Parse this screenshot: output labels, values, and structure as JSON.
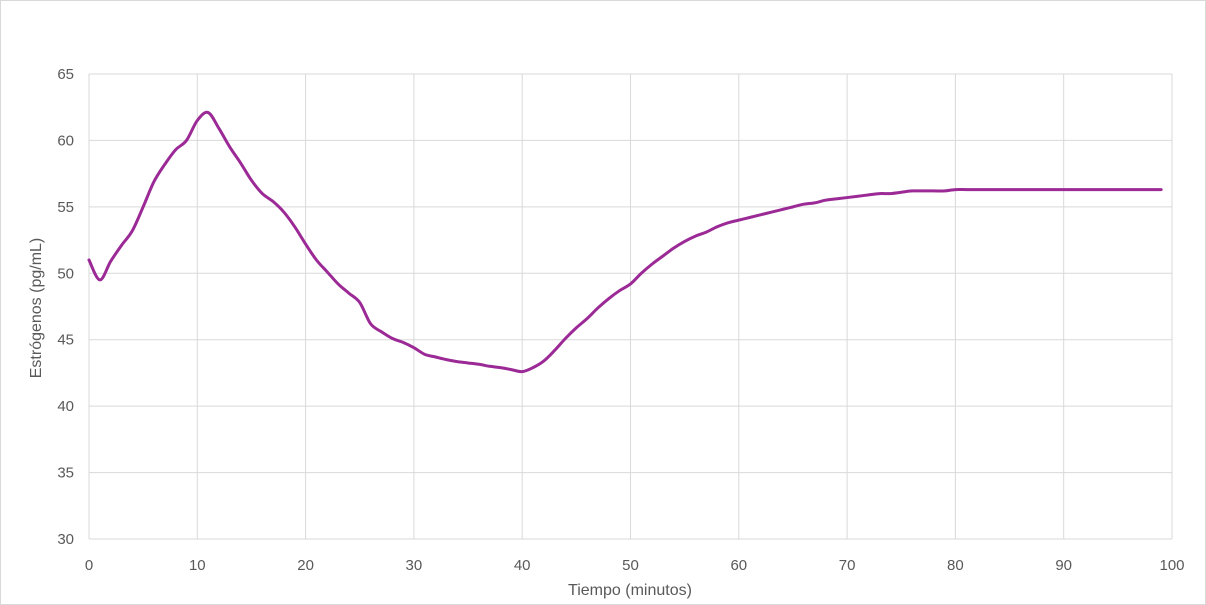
{
  "chart_data": {
    "type": "line",
    "title": "",
    "xlabel": "Tiempo (minutos)",
    "ylabel": "Estrógenos (pg/mL)",
    "xlim": [
      0,
      100
    ],
    "ylim": [
      30,
      65
    ],
    "xticks": [
      0,
      10,
      20,
      30,
      40,
      50,
      60,
      70,
      80,
      90,
      100
    ],
    "yticks": [
      30,
      35,
      40,
      45,
      50,
      55,
      60,
      65
    ],
    "grid": true,
    "legend": "none",
    "colors": {
      "line": "#9b2a96",
      "grid": "#d9d9d9",
      "text": "#595959"
    },
    "series": [
      {
        "x": [
          0,
          1,
          2,
          3,
          4,
          5,
          6,
          7,
          8,
          9,
          10,
          11,
          12,
          13,
          14,
          15,
          16,
          17,
          18,
          19,
          20,
          21,
          22,
          23,
          24,
          25,
          26,
          27,
          28,
          29,
          30,
          31,
          32,
          33,
          34,
          35,
          36,
          37,
          38,
          39,
          40,
          41,
          42,
          43,
          44,
          45,
          46,
          47,
          48,
          49,
          50,
          51,
          52,
          53,
          54,
          55,
          56,
          57,
          58,
          59,
          60,
          61,
          62,
          63,
          64,
          65,
          66,
          67,
          68,
          69,
          70,
          71,
          72,
          73,
          74,
          75,
          76,
          77,
          78,
          79,
          80,
          81,
          82,
          83,
          84,
          85,
          86,
          87,
          88,
          89,
          90,
          91,
          92,
          93,
          94,
          95,
          96,
          97,
          98,
          99
        ],
        "values": [
          51.0,
          49.5,
          50.9,
          52.1,
          53.2,
          55.0,
          56.9,
          58.2,
          59.3,
          60.0,
          61.5,
          62.1,
          60.9,
          59.5,
          58.3,
          57.0,
          56.0,
          55.4,
          54.6,
          53.5,
          52.2,
          51.0,
          50.1,
          49.2,
          48.5,
          47.8,
          46.2,
          45.6,
          45.1,
          44.8,
          44.4,
          43.9,
          43.7,
          43.5,
          43.35,
          43.25,
          43.15,
          43.0,
          42.9,
          42.75,
          42.6,
          42.9,
          43.4,
          44.2,
          45.1,
          45.9,
          46.6,
          47.4,
          48.1,
          48.7,
          49.2,
          50.0,
          50.7,
          51.3,
          51.9,
          52.4,
          52.8,
          53.1,
          53.5,
          53.8,
          54.0,
          54.2,
          54.4,
          54.6,
          54.8,
          55.0,
          55.2,
          55.3,
          55.5,
          55.6,
          55.7,
          55.8,
          55.9,
          56.0,
          56.0,
          56.1,
          56.2,
          56.2,
          56.2,
          56.2,
          56.3,
          56.3,
          56.3,
          56.3,
          56.3,
          56.3,
          56.3,
          56.3,
          56.3,
          56.3,
          56.3,
          56.3,
          56.3,
          56.3,
          56.3,
          56.3,
          56.3,
          56.3,
          56.3,
          56.3
        ]
      }
    ]
  }
}
